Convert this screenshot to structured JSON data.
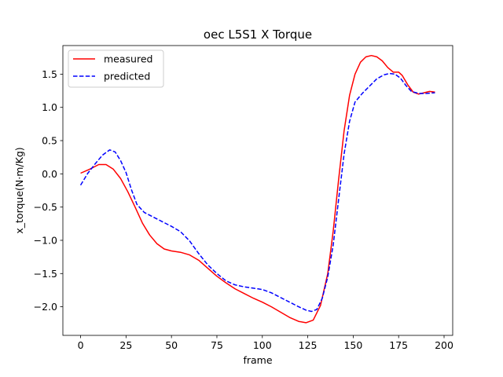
{
  "chart_data": {
    "type": "line",
    "title": "oec L5S1 X Torque",
    "xlabel": "frame",
    "ylabel": "x_torque(N·m/Kg)",
    "xlim": [
      -9.75,
      204.75
    ],
    "ylim": [
      -2.43,
      1.93
    ],
    "xticks": [
      0,
      25,
      50,
      75,
      100,
      125,
      150,
      175,
      200
    ],
    "yticks": [
      -2.0,
      -1.5,
      -1.0,
      -0.5,
      0.0,
      0.5,
      1.0,
      1.5
    ],
    "ytick_labels": [
      "−2.0",
      "−1.5",
      "−1.0",
      "−0.5",
      "0.0",
      "0.5",
      "1.0",
      "1.5"
    ],
    "grid": false,
    "legend_position": "upper-left",
    "series": [
      {
        "name": "measured",
        "color": "#ff0000",
        "style": "solid",
        "points": [
          [
            0,
            0.01
          ],
          [
            5,
            0.07
          ],
          [
            10,
            0.14
          ],
          [
            14,
            0.14
          ],
          [
            18,
            0.07
          ],
          [
            22,
            -0.07
          ],
          [
            26,
            -0.27
          ],
          [
            30,
            -0.5
          ],
          [
            34,
            -0.74
          ],
          [
            38,
            -0.92
          ],
          [
            42,
            -1.05
          ],
          [
            46,
            -1.13
          ],
          [
            50,
            -1.16
          ],
          [
            55,
            -1.18
          ],
          [
            60,
            -1.22
          ],
          [
            65,
            -1.3
          ],
          [
            70,
            -1.42
          ],
          [
            75,
            -1.54
          ],
          [
            80,
            -1.64
          ],
          [
            85,
            -1.73
          ],
          [
            90,
            -1.8
          ],
          [
            95,
            -1.87
          ],
          [
            100,
            -1.93
          ],
          [
            105,
            -2.0
          ],
          [
            110,
            -2.08
          ],
          [
            115,
            -2.16
          ],
          [
            120,
            -2.22
          ],
          [
            124,
            -2.24
          ],
          [
            128,
            -2.2
          ],
          [
            132,
            -1.98
          ],
          [
            136,
            -1.5
          ],
          [
            139,
            -0.86
          ],
          [
            142,
            -0.08
          ],
          [
            145,
            0.65
          ],
          [
            148,
            1.18
          ],
          [
            151,
            1.5
          ],
          [
            154,
            1.68
          ],
          [
            157,
            1.76
          ],
          [
            160,
            1.78
          ],
          [
            163,
            1.76
          ],
          [
            166,
            1.7
          ],
          [
            169,
            1.6
          ],
          [
            172,
            1.53
          ],
          [
            175,
            1.53
          ],
          [
            177,
            1.48
          ],
          [
            180,
            1.34
          ],
          [
            183,
            1.23
          ],
          [
            186,
            1.2
          ],
          [
            189,
            1.22
          ],
          [
            192,
            1.24
          ],
          [
            195,
            1.23
          ]
        ]
      },
      {
        "name": "predicted",
        "color": "#0000ff",
        "style": "dashed",
        "points": [
          [
            0,
            -0.17
          ],
          [
            4,
            0.01
          ],
          [
            8,
            0.15
          ],
          [
            12,
            0.28
          ],
          [
            16,
            0.36
          ],
          [
            19,
            0.33
          ],
          [
            22,
            0.2
          ],
          [
            25,
            0.02
          ],
          [
            28,
            -0.24
          ],
          [
            31,
            -0.46
          ],
          [
            35,
            -0.58
          ],
          [
            40,
            -0.65
          ],
          [
            45,
            -0.72
          ],
          [
            50,
            -0.79
          ],
          [
            55,
            -0.87
          ],
          [
            60,
            -1.01
          ],
          [
            65,
            -1.2
          ],
          [
            70,
            -1.37
          ],
          [
            75,
            -1.5
          ],
          [
            80,
            -1.61
          ],
          [
            85,
            -1.67
          ],
          [
            90,
            -1.7
          ],
          [
            95,
            -1.72
          ],
          [
            100,
            -1.74
          ],
          [
            105,
            -1.79
          ],
          [
            110,
            -1.86
          ],
          [
            115,
            -1.93
          ],
          [
            120,
            -2.0
          ],
          [
            124,
            -2.05
          ],
          [
            127,
            -2.07
          ],
          [
            130,
            -2.04
          ],
          [
            133,
            -1.87
          ],
          [
            136,
            -1.55
          ],
          [
            139,
            -1.07
          ],
          [
            142,
            -0.38
          ],
          [
            145,
            0.3
          ],
          [
            148,
            0.79
          ],
          [
            151,
            1.08
          ],
          [
            155,
            1.21
          ],
          [
            159,
            1.32
          ],
          [
            163,
            1.43
          ],
          [
            167,
            1.49
          ],
          [
            170,
            1.51
          ],
          [
            173,
            1.5
          ],
          [
            176,
            1.44
          ],
          [
            179,
            1.33
          ],
          [
            182,
            1.24
          ],
          [
            186,
            1.21
          ],
          [
            190,
            1.21
          ],
          [
            195,
            1.22
          ]
        ]
      }
    ]
  }
}
